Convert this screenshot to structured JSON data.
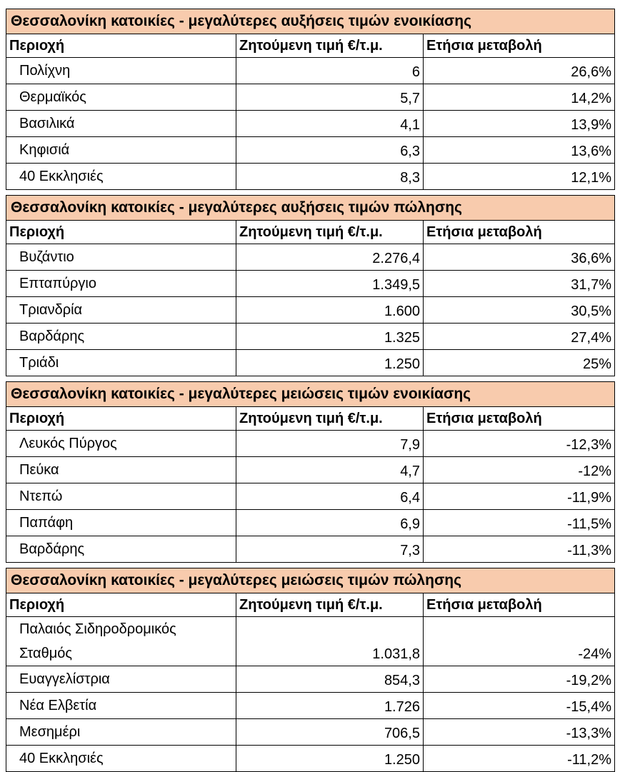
{
  "tables": [
    {
      "title": "Θεσσαλονίκη κατοικίες - μεγαλύτερες αυξήσεις τιμών ενοικίασης",
      "headers": [
        "Περιοχή",
        "Ζητούμενη τιμή €/τ.μ.",
        "Ετήσια μεταβολή"
      ],
      "rows": [
        [
          "Πολίχνη",
          "6",
          "26,6%"
        ],
        [
          "Θερμαϊκός",
          "5,7",
          "14,2%"
        ],
        [
          "Βασιλικά",
          "4,1",
          "13,9%"
        ],
        [
          "Κηφισιά",
          "6,3",
          "13,6%"
        ],
        [
          "40 Εκκλησιές",
          "8,3",
          "12,1%"
        ]
      ]
    },
    {
      "title": "Θεσσαλονίκη κατοικίες - μεγαλύτερες αυξήσεις τιμών πώλησης",
      "headers": [
        "Περιοχή",
        "Ζητούμενη τιμή €/τ.μ.",
        "Ετήσια μεταβολή"
      ],
      "rows": [
        [
          "Βυζάντιο",
          "2.276,4",
          "36,6%"
        ],
        [
          "Επταπύργιο",
          "1.349,5",
          "31,7%"
        ],
        [
          "Τριανδρία",
          "1.600",
          "30,5%"
        ],
        [
          "Βαρδάρης",
          "1.325",
          "27,4%"
        ],
        [
          "Τριάδι",
          "1.250",
          "25%"
        ]
      ]
    },
    {
      "title": "Θεσσαλονίκη κατοικίες - μεγαλύτερες μειώσεις τιμών ενοικίασης",
      "headers": [
        "Περιοχή",
        "Ζητούμενη τιμή €/τ.μ.",
        "Ετήσια μεταβολή"
      ],
      "rows": [
        [
          "Λευκός Πύργος",
          "7,9",
          "-12,3%"
        ],
        [
          "Πεύκα",
          "4,7",
          "-12%"
        ],
        [
          "Ντεπώ",
          "6,4",
          "-11,9%"
        ],
        [
          "Παπάφη",
          "6,9",
          "-11,5%"
        ],
        [
          "Βαρδάρης",
          "7,3",
          "-11,3%"
        ]
      ]
    },
    {
      "title": "Θεσσαλονίκη κατοικίες - μεγαλύτερες μειώσεις τιμών πώλησης",
      "headers": [
        "Περιοχή",
        "Ζητούμενη τιμή €/τ.μ.",
        "Ετήσια μεταβολή"
      ],
      "rows": [
        [
          "Παλαιός Σιδηροδρομικός Σταθμός",
          "1.031,8",
          "-24%"
        ],
        [
          "Ευαγγελίστρια",
          "854,3",
          "-19,2%"
        ],
        [
          "Νέα Ελβετία",
          "1.726",
          "-15,4%"
        ],
        [
          "Μεσημέρι",
          "706,5",
          "-13,3%"
        ],
        [
          "40 Εκκλησιές",
          "1.250",
          "-11,2%"
        ]
      ]
    }
  ]
}
